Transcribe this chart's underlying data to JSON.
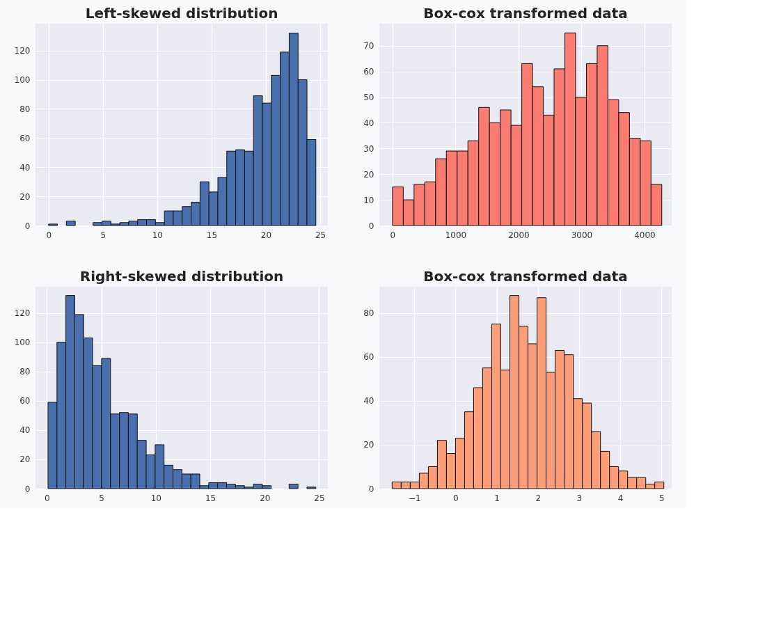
{
  "chart_data": [
    {
      "type": "histogram",
      "title": "Left-skewed distribution",
      "color": "#4a6fad",
      "grid": true,
      "bins": [
        0,
        0.82,
        1.64,
        2.46,
        3.28,
        4.1,
        4.92,
        5.74,
        6.56,
        7.38,
        8.2,
        9.02,
        9.84,
        10.66,
        11.48,
        12.3,
        13.12,
        13.94,
        14.76,
        15.58,
        16.4,
        17.22,
        18.04,
        18.86,
        19.68,
        20.5,
        21.32,
        22.14,
        22.96,
        23.78,
        24.6
      ],
      "values": [
        1,
        0,
        3,
        0,
        0,
        2,
        3,
        1,
        2,
        3,
        4,
        4,
        2,
        10,
        10,
        13,
        16,
        30,
        23,
        33,
        51,
        52,
        51,
        89,
        84,
        103,
        119,
        132,
        100,
        59
      ],
      "xlim": [
        -1.2,
        25.7
      ],
      "xticks": [
        0,
        5,
        10,
        15,
        20,
        25
      ],
      "ylim": [
        0,
        138.5
      ],
      "yticks": [
        0,
        20,
        40,
        60,
        80,
        100,
        120
      ]
    },
    {
      "type": "histogram",
      "title": "Box-cox transformed data",
      "color": "#fa7b6f",
      "grid": true,
      "bins": [
        0,
        171,
        342,
        513,
        684,
        855,
        1026,
        1197,
        1368,
        1539,
        1710,
        1881,
        2052,
        2223,
        2394,
        2565,
        2736,
        2907,
        3078,
        3249,
        3420,
        3591,
        3762,
        3933,
        4104,
        4275
      ],
      "values": [
        15,
        10,
        16,
        17,
        26,
        29,
        29,
        33,
        46,
        40,
        45,
        39,
        63,
        54,
        43,
        61,
        75,
        50,
        63,
        70,
        49,
        44,
        34,
        33,
        16
      ],
      "xlim": [
        -209,
        4432
      ],
      "xticks": [
        0,
        1000,
        2000,
        3000,
        4000
      ],
      "ylim": [
        0,
        78.6
      ],
      "yticks": [
        0,
        10,
        20,
        30,
        40,
        50,
        60,
        70
      ]
    },
    {
      "type": "histogram",
      "title": "Right-skewed distribution",
      "color": "#4a6fad",
      "grid": true,
      "bins": [
        0.1,
        0.92,
        1.74,
        2.56,
        3.38,
        4.2,
        5.02,
        5.84,
        6.66,
        7.48,
        8.3,
        9.12,
        9.94,
        10.76,
        11.58,
        12.4,
        13.22,
        14.04,
        14.86,
        15.68,
        16.5,
        17.32,
        18.14,
        18.96,
        19.78,
        20.6,
        21.42,
        22.24,
        23.06,
        23.88,
        24.7
      ],
      "values": [
        59,
        100,
        132,
        119,
        103,
        84,
        89,
        51,
        52,
        51,
        33,
        23,
        30,
        16,
        13,
        10,
        10,
        2,
        4,
        4,
        3,
        2,
        1,
        3,
        2,
        0,
        0,
        3,
        0,
        1
      ],
      "xlim": [
        -1.05,
        25.8
      ],
      "xticks": [
        0,
        5,
        10,
        15,
        20,
        25
      ],
      "ylim": [
        0,
        138
      ],
      "yticks": [
        0,
        20,
        40,
        60,
        80,
        100,
        120
      ]
    },
    {
      "type": "histogram",
      "title": "Box-cox transformed data",
      "color": "#fc9f78",
      "grid": true,
      "bins": [
        -1.54,
        -1.32,
        -1.1,
        -0.88,
        -0.66,
        -0.44,
        -0.22,
        0,
        0.22,
        0.44,
        0.66,
        0.88,
        1.1,
        1.32,
        1.54,
        1.76,
        1.98,
        2.2,
        2.42,
        2.64,
        2.86,
        3.08,
        3.3,
        3.52,
        3.74,
        3.96,
        4.18,
        4.4,
        4.62,
        4.84,
        5.06
      ],
      "values": [
        3,
        3,
        3,
        7,
        10,
        22,
        16,
        23,
        35,
        46,
        55,
        75,
        54,
        88,
        74,
        66,
        87,
        53,
        63,
        61,
        41,
        39,
        26,
        17,
        10,
        8,
        5,
        5,
        2,
        3
      ],
      "xlim": [
        -1.85,
        5.25
      ],
      "xticks": [
        -1,
        0,
        1,
        2,
        3,
        4,
        5
      ],
      "ylim": [
        0,
        92
      ],
      "yticks": [
        0,
        20,
        40,
        60,
        80
      ]
    }
  ]
}
